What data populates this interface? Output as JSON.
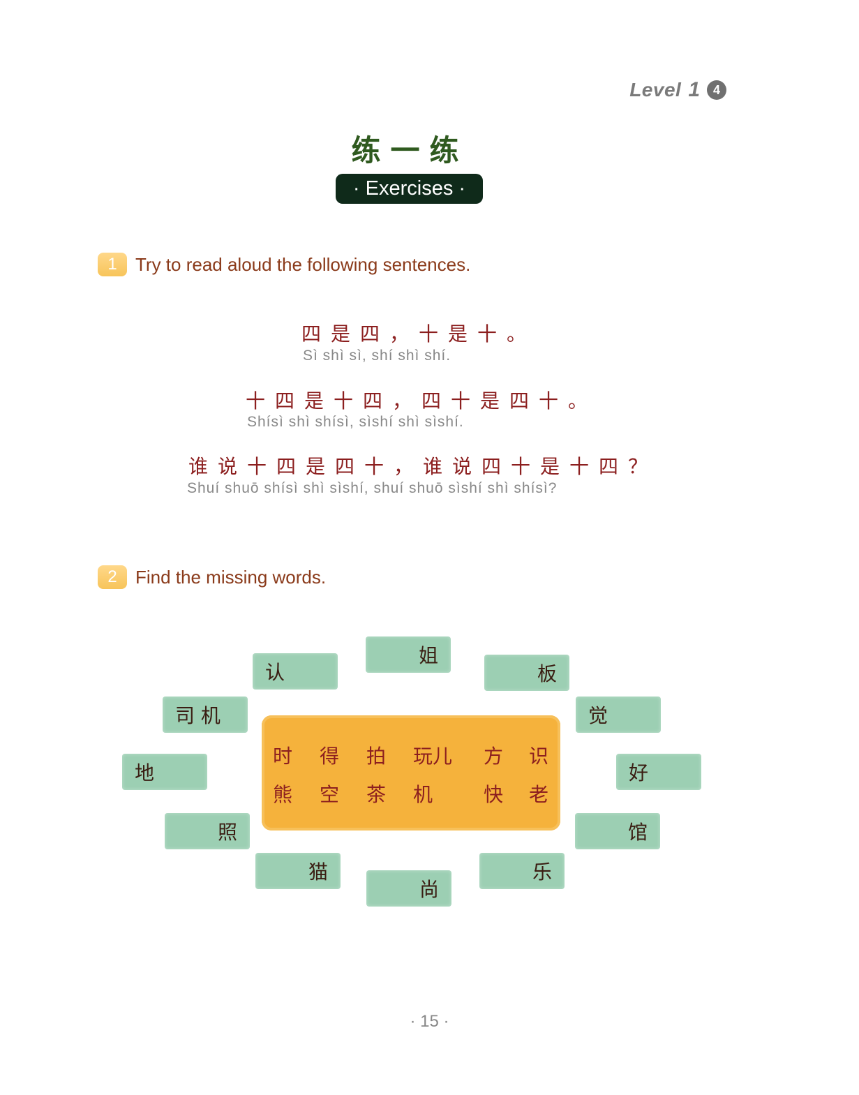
{
  "header": {
    "level_label": "Level",
    "level_number": "1",
    "unit_badge": "4"
  },
  "title": {
    "chinese": "练一练",
    "english": "· Exercises ·"
  },
  "exercise1": {
    "number": "1",
    "instruction": "Try to read aloud the following sentences.",
    "lines": [
      {
        "hanzi": "四是四，十是十。",
        "pinyin": "Sì shì sì,      shí shì shí."
      },
      {
        "hanzi": "十四是十四，四十是四十。",
        "pinyin": "Shísì  shì  shísì,      sìshí   shì  sìshí."
      },
      {
        "hanzi": "谁说十四是四十，谁说四十是十四？",
        "pinyin": "Shuí shuō shísì  shì  sìshí,      shuí shuō sìshí  shì   shísì?"
      }
    ]
  },
  "exercise2": {
    "number": "2",
    "instruction": "Find the missing words.",
    "boxes": [
      "认",
      "姐",
      "板",
      "司 机",
      "觉",
      "地",
      "好",
      "照",
      "馆",
      "猫",
      "尚",
      "乐"
    ],
    "center_row1": [
      "时",
      "得",
      "拍",
      "玩儿",
      "方",
      "识"
    ],
    "center_row2": [
      "熊",
      "空",
      "茶",
      "机",
      "快",
      "老"
    ]
  },
  "page_number": "· 15 ·"
}
